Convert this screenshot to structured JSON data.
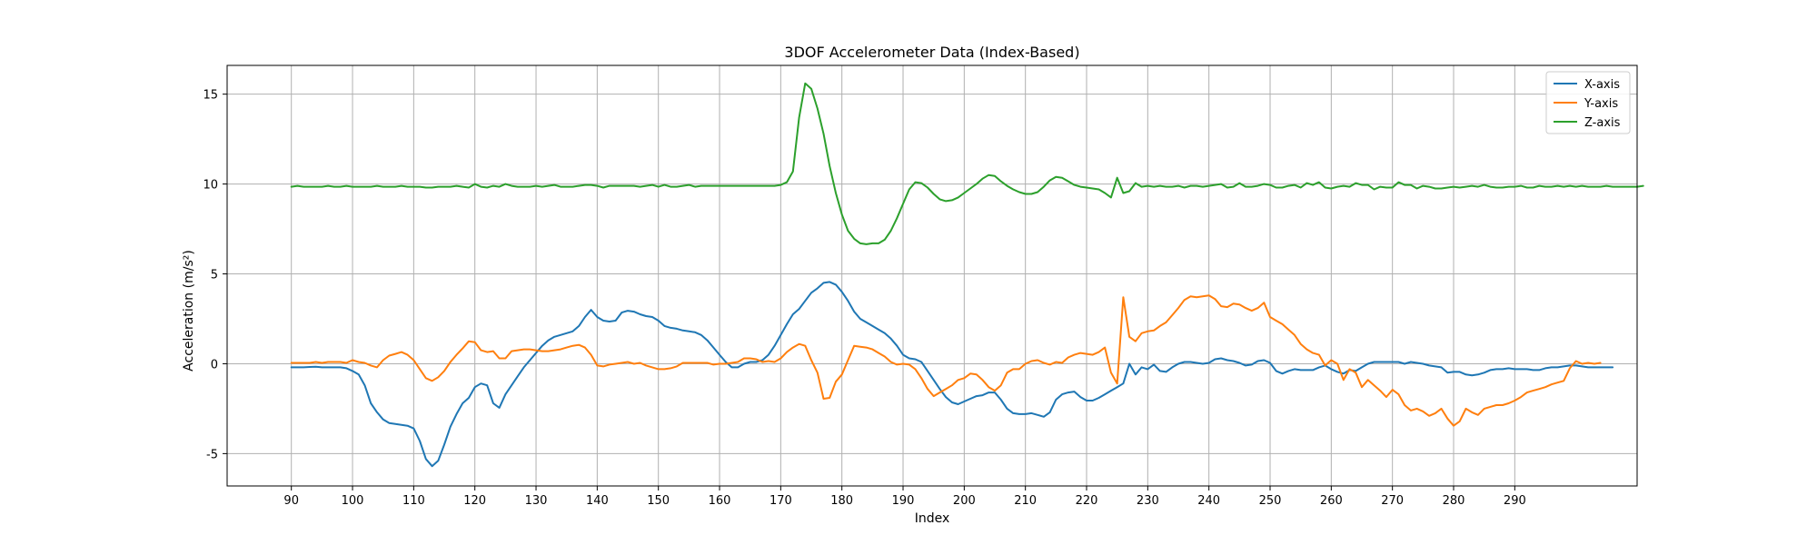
{
  "chart_data": {
    "type": "line",
    "title": "3DOF Accelerometer Data (Index-Based)",
    "xlabel": "Index",
    "ylabel": "Acceleration (m/s²)",
    "xlim": [
      79.5,
      310
    ],
    "ylim": [
      -6.8,
      16.6
    ],
    "xticks": [
      90,
      100,
      110,
      120,
      130,
      140,
      150,
      160,
      170,
      180,
      190,
      200,
      210,
      220,
      230,
      240,
      250,
      260,
      270,
      280,
      290
    ],
    "yticks": [
      -5,
      0,
      5,
      10,
      15
    ],
    "grid": true,
    "legend": "top-right",
    "x_start": 90,
    "series": [
      {
        "name": "X-axis",
        "color": "#1f77b4",
        "values": [
          -0.2,
          -0.2,
          -0.2,
          -0.18,
          -0.17,
          -0.2,
          -0.2,
          -0.2,
          -0.2,
          -0.25,
          -0.4,
          -0.6,
          -1.2,
          -2.2,
          -2.7,
          -3.1,
          -3.3,
          -3.35,
          -3.4,
          -3.45,
          -3.6,
          -4.3,
          -5.3,
          -5.7,
          -5.4,
          -4.5,
          -3.5,
          -2.8,
          -2.2,
          -1.9,
          -1.3,
          -1.1,
          -1.2,
          -2.2,
          -2.45,
          -1.7,
          -1.2,
          -0.7,
          -0.2,
          0.2,
          0.6,
          1.0,
          1.3,
          1.5,
          1.6,
          1.7,
          1.8,
          2.1,
          2.6,
          3.0,
          2.6,
          2.4,
          2.35,
          2.4,
          2.85,
          2.95,
          2.9,
          2.75,
          2.65,
          2.6,
          2.4,
          2.1,
          2.0,
          1.95,
          1.85,
          1.8,
          1.75,
          1.6,
          1.3,
          0.9,
          0.5,
          0.1,
          -0.2,
          -0.2,
          0.0,
          0.1,
          0.1,
          0.2,
          0.5,
          1.0,
          1.6,
          2.2,
          2.75,
          3.05,
          3.5,
          3.95,
          4.2,
          4.5,
          4.55,
          4.4,
          4.0,
          3.5,
          2.9,
          2.5,
          2.3,
          2.1,
          1.9,
          1.7,
          1.4,
          1.0,
          0.5,
          0.3,
          0.25,
          0.1,
          -0.4,
          -0.9,
          -1.4,
          -1.85,
          -2.15,
          -2.25,
          -2.1,
          -1.95,
          -1.8,
          -1.75,
          -1.6,
          -1.6,
          -2.0,
          -2.5,
          -2.75,
          -2.8,
          -2.8,
          -2.75,
          -2.85,
          -2.95,
          -2.7,
          -2.0,
          -1.7,
          -1.6,
          -1.55,
          -1.85,
          -2.05,
          -2.05,
          -1.9,
          -1.7,
          -1.5,
          -1.3,
          -1.1,
          0.0,
          -0.6,
          -0.2,
          -0.3,
          -0.05,
          -0.4,
          -0.45,
          -0.2,
          0.0,
          0.1,
          0.1,
          0.05,
          0.0,
          0.05,
          0.25,
          0.3,
          0.2,
          0.15,
          0.05,
          -0.1,
          -0.05,
          0.15,
          0.2,
          0.05,
          -0.4,
          -0.55,
          -0.4,
          -0.3,
          -0.35,
          -0.35,
          -0.35,
          -0.2,
          -0.1,
          -0.3,
          -0.45,
          -0.55,
          -0.35,
          -0.4,
          -0.2,
          0.0,
          0.1,
          0.1,
          0.1,
          0.1,
          0.1,
          0.0,
          0.1,
          0.05,
          0.0,
          -0.1,
          -0.15,
          -0.2,
          -0.5,
          -0.45,
          -0.45,
          -0.6,
          -0.65,
          -0.6,
          -0.5,
          -0.35,
          -0.3,
          -0.3,
          -0.25,
          -0.3,
          -0.3,
          -0.3,
          -0.35,
          -0.35,
          -0.25,
          -0.2,
          -0.2,
          -0.15,
          -0.1,
          -0.1,
          -0.15,
          -0.2,
          -0.2,
          -0.2,
          -0.2,
          -0.2
        ]
      },
      {
        "name": "Y-axis",
        "color": "#ff7f0e",
        "values": [
          0.05,
          0.05,
          0.05,
          0.05,
          0.1,
          0.05,
          0.1,
          0.1,
          0.1,
          0.05,
          0.2,
          0.1,
          0.05,
          -0.1,
          -0.2,
          0.2,
          0.45,
          0.55,
          0.65,
          0.5,
          0.2,
          -0.3,
          -0.8,
          -0.95,
          -0.75,
          -0.4,
          0.1,
          0.5,
          0.85,
          1.25,
          1.2,
          0.75,
          0.65,
          0.7,
          0.3,
          0.3,
          0.7,
          0.75,
          0.8,
          0.8,
          0.75,
          0.7,
          0.7,
          0.75,
          0.8,
          0.9,
          1.0,
          1.05,
          0.9,
          0.5,
          -0.1,
          -0.15,
          -0.05,
          0.0,
          0.05,
          0.1,
          0.0,
          0.05,
          -0.1,
          -0.2,
          -0.3,
          -0.3,
          -0.25,
          -0.15,
          0.05,
          0.05,
          0.05,
          0.05,
          0.05,
          -0.05,
          0.0,
          0.0,
          0.05,
          0.1,
          0.3,
          0.3,
          0.25,
          0.1,
          0.15,
          0.1,
          0.3,
          0.65,
          0.9,
          1.1,
          1.0,
          0.2,
          -0.5,
          -1.95,
          -1.9,
          -1.0,
          -0.6,
          0.2,
          1.0,
          0.95,
          0.9,
          0.8,
          0.6,
          0.4,
          0.1,
          -0.05,
          0.0,
          -0.05,
          -0.3,
          -0.8,
          -1.4,
          -1.8,
          -1.6,
          -1.4,
          -1.2,
          -0.9,
          -0.8,
          -0.55,
          -0.6,
          -0.9,
          -1.3,
          -1.5,
          -1.2,
          -0.5,
          -0.3,
          -0.3,
          0.0,
          0.15,
          0.2,
          0.05,
          -0.05,
          0.1,
          0.05,
          0.35,
          0.5,
          0.6,
          0.55,
          0.5,
          0.65,
          0.9,
          -0.5,
          -1.1,
          3.7,
          1.5,
          1.25,
          1.7,
          1.8,
          1.85,
          2.1,
          2.3,
          2.7,
          3.1,
          3.55,
          3.75,
          3.7,
          3.75,
          3.8,
          3.6,
          3.2,
          3.15,
          3.35,
          3.3,
          3.1,
          2.95,
          3.1,
          3.4,
          2.6,
          2.4,
          2.2,
          1.9,
          1.6,
          1.1,
          0.8,
          0.6,
          0.5,
          -0.1,
          0.2,
          0.0,
          -0.9,
          -0.3,
          -0.5,
          -1.3,
          -0.9,
          -1.2,
          -1.5,
          -1.85,
          -1.45,
          -1.7,
          -2.3,
          -2.6,
          -2.5,
          -2.65,
          -2.9,
          -2.75,
          -2.5,
          -3.05,
          -3.45,
          -3.2,
          -2.5,
          -2.7,
          -2.85,
          -2.5,
          -2.4,
          -2.3,
          -2.3,
          -2.2,
          -2.05,
          -1.85,
          -1.6,
          -1.5,
          -1.4,
          -1.3,
          -1.15,
          -1.05,
          -0.95,
          -0.25,
          0.15,
          0.0,
          0.05,
          0.0,
          0.05
        ]
      },
      {
        "name": "Z-axis",
        "color": "#2ca02c",
        "values": [
          9.85,
          9.9,
          9.85,
          9.85,
          9.85,
          9.85,
          9.9,
          9.85,
          9.85,
          9.9,
          9.85,
          9.85,
          9.85,
          9.85,
          9.9,
          9.85,
          9.85,
          9.85,
          9.9,
          9.85,
          9.85,
          9.85,
          9.8,
          9.8,
          9.85,
          9.85,
          9.85,
          9.9,
          9.85,
          9.8,
          10.0,
          9.85,
          9.8,
          9.9,
          9.85,
          10.0,
          9.9,
          9.85,
          9.85,
          9.85,
          9.9,
          9.85,
          9.9,
          9.95,
          9.85,
          9.85,
          9.85,
          9.9,
          9.95,
          9.95,
          9.9,
          9.8,
          9.9,
          9.9,
          9.9,
          9.9,
          9.9,
          9.85,
          9.9,
          9.95,
          9.85,
          9.95,
          9.85,
          9.85,
          9.9,
          9.95,
          9.85,
          9.9,
          9.9,
          9.9,
          9.9,
          9.9,
          9.9,
          9.9,
          9.9,
          9.9,
          9.9,
          9.9,
          9.9,
          9.9,
          9.95,
          10.1,
          10.7,
          13.7,
          15.6,
          15.3,
          14.2,
          12.8,
          11.0,
          9.5,
          8.3,
          7.4,
          6.95,
          6.7,
          6.65,
          6.7,
          6.7,
          6.9,
          7.4,
          8.1,
          8.9,
          9.7,
          10.1,
          10.05,
          9.8,
          9.45,
          9.15,
          9.05,
          9.1,
          9.25,
          9.5,
          9.75,
          10.0,
          10.3,
          10.5,
          10.45,
          10.15,
          9.9,
          9.7,
          9.55,
          9.45,
          9.45,
          9.55,
          9.85,
          10.2,
          10.4,
          10.35,
          10.15,
          9.95,
          9.85,
          9.8,
          9.75,
          9.7,
          9.5,
          9.25,
          10.35,
          9.5,
          9.6,
          10.05,
          9.85,
          9.9,
          9.85,
          9.9,
          9.85,
          9.85,
          9.9,
          9.8,
          9.9,
          9.9,
          9.85,
          9.9,
          9.95,
          10.0,
          9.8,
          9.85,
          10.05,
          9.85,
          9.85,
          9.9,
          10.0,
          9.95,
          9.8,
          9.8,
          9.9,
          9.95,
          9.8,
          10.05,
          9.95,
          10.1,
          9.8,
          9.75,
          9.85,
          9.9,
          9.85,
          10.05,
          9.95,
          9.95,
          9.7,
          9.85,
          9.8,
          9.8,
          10.1,
          9.95,
          9.95,
          9.75,
          9.9,
          9.85,
          9.75,
          9.75,
          9.8,
          9.85,
          9.8,
          9.85,
          9.9,
          9.85,
          9.95,
          9.85,
          9.8,
          9.8,
          9.85,
          9.85,
          9.9,
          9.8,
          9.8,
          9.9,
          9.85,
          9.85,
          9.9,
          9.85,
          9.9,
          9.85,
          9.9,
          9.85,
          9.85,
          9.85,
          9.9,
          9.85,
          9.85,
          9.85,
          9.85,
          9.85,
          9.9
        ]
      }
    ]
  }
}
